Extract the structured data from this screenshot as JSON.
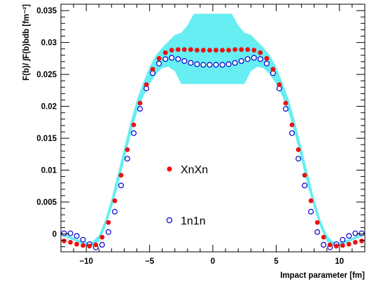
{
  "chart_data": {
    "type": "scatter",
    "title": "",
    "xlabel": "Impact parameter [fm]",
    "ylabel": "F(b)/ ∫F(b)bdb [fm⁻²]",
    "xlim": [
      -12,
      12
    ],
    "ylim": [
      -0.0028,
      0.036
    ],
    "x_ticks": [
      -10,
      -5,
      0,
      5,
      10
    ],
    "x_tick_labels": [
      "−10",
      "−5",
      "0",
      "5",
      "10"
    ],
    "y_ticks": [
      0,
      0.005,
      0.01,
      0.015,
      0.02,
      0.025,
      0.03,
      0.035
    ],
    "y_tick_labels": [
      "0",
      "0.005",
      "0.01",
      "0.015",
      "0.02",
      "0.025",
      "0.03",
      "0.035"
    ],
    "grid": false,
    "legend_position": "center",
    "band_color": "#66eef2",
    "band": {
      "x": [
        -12,
        -11.5,
        -11,
        -10.5,
        -10,
        -9.5,
        -9,
        -8.5,
        -8,
        -7.5,
        -7,
        -6.5,
        -6,
        -5.5,
        -5,
        -4.5,
        -4,
        -3.5,
        -3,
        -2.5,
        -2,
        -1.5,
        -1,
        -0.5,
        0,
        0.5,
        1,
        1.5,
        2,
        2.5,
        3,
        3.5,
        4,
        4.5,
        5,
        5.5,
        6,
        6.5,
        7,
        7.5,
        8,
        8.5,
        9,
        9.5,
        10,
        10.5,
        11,
        11.5,
        12
      ],
      "lower": [
        -0.0002,
        -0.0006,
        -0.001,
        -0.0015,
        -0.0018,
        -0.0019,
        -0.0012,
        0.001,
        0.004,
        0.0075,
        0.0115,
        0.0155,
        0.019,
        0.0215,
        0.0235,
        0.025,
        0.026,
        0.0262,
        0.0255,
        0.0235,
        0.0235,
        0.0235,
        0.0235,
        0.0235,
        0.0235,
        0.0235,
        0.0235,
        0.0235,
        0.0235,
        0.0235,
        0.0255,
        0.0262,
        0.026,
        0.025,
        0.0235,
        0.0215,
        0.019,
        0.0155,
        0.0115,
        0.0075,
        0.004,
        0.001,
        -0.0012,
        -0.0019,
        -0.0018,
        -0.0015,
        -0.001,
        -0.0006,
        -0.0002
      ],
      "upper": [
        0.0002,
        -0.0002,
        -0.0006,
        -0.001,
        -0.0013,
        -0.0012,
        -0.0002,
        0.0022,
        0.0055,
        0.0095,
        0.0135,
        0.0175,
        0.021,
        0.0237,
        0.0262,
        0.028,
        0.0292,
        0.0302,
        0.0312,
        0.0315,
        0.0327,
        0.0345,
        0.0345,
        0.0345,
        0.0345,
        0.0345,
        0.0345,
        0.0345,
        0.0327,
        0.0315,
        0.0312,
        0.0302,
        0.0292,
        0.028,
        0.0262,
        0.0237,
        0.021,
        0.0175,
        0.0135,
        0.0095,
        0.0055,
        0.0022,
        -0.0002,
        -0.0012,
        -0.0013,
        -0.001,
        -0.0006,
        -0.0002,
        0.0002
      ]
    },
    "series": [
      {
        "name": "XnXn",
        "marker": "filled-circle",
        "color": "#ee1111",
        "x": [
          -11.75,
          -11.25,
          -10.75,
          -10.25,
          -9.75,
          -9.25,
          -8.75,
          -8.25,
          -7.75,
          -7.25,
          -6.75,
          -6.25,
          -5.75,
          -5.25,
          -4.75,
          -4.25,
          -3.75,
          -3.25,
          -2.75,
          -2.25,
          -1.75,
          -1.25,
          -0.75,
          -0.25,
          0.25,
          0.75,
          1.25,
          1.75,
          2.25,
          2.75,
          3.25,
          3.75,
          4.25,
          4.75,
          5.25,
          5.75,
          6.25,
          6.75,
          7.25,
          7.75,
          8.25,
          8.75,
          9.25,
          9.75,
          10.25,
          10.75,
          11.25,
          11.75
        ],
        "y": [
          -0.0011,
          -0.0013,
          -0.0016,
          -0.0018,
          -0.0019,
          -0.0017,
          -0.0005,
          0.0018,
          0.0052,
          0.0092,
          0.0132,
          0.0171,
          0.0205,
          0.0234,
          0.0258,
          0.0275,
          0.0284,
          0.0288,
          0.0289,
          0.0289,
          0.0289,
          0.0288,
          0.0288,
          0.0288,
          0.0288,
          0.0288,
          0.0288,
          0.0289,
          0.0289,
          0.0289,
          0.0288,
          0.0284,
          0.0275,
          0.0258,
          0.0234,
          0.0205,
          0.0171,
          0.0132,
          0.0092,
          0.0052,
          0.0018,
          -0.0005,
          -0.0017,
          -0.0019,
          -0.0018,
          -0.0016,
          -0.0013,
          -0.0011
        ]
      },
      {
        "name": "1n1n",
        "marker": "open-circle",
        "color": "#0000cc",
        "x": [
          -11.75,
          -11.25,
          -10.75,
          -10.25,
          -9.75,
          -9.25,
          -8.75,
          -8.25,
          -7.75,
          -7.25,
          -6.75,
          -6.25,
          -5.75,
          -5.25,
          -4.75,
          -4.25,
          -3.75,
          -3.25,
          -2.75,
          -2.25,
          -1.75,
          -1.25,
          -0.75,
          -0.25,
          0.25,
          0.75,
          1.25,
          1.75,
          2.25,
          2.75,
          3.25,
          3.75,
          4.25,
          4.75,
          5.25,
          5.75,
          6.25,
          6.75,
          7.25,
          7.75,
          8.25,
          8.75,
          9.25,
          9.75,
          10.25,
          10.75,
          11.25,
          11.75
        ],
        "y": [
          0.0001,
          0.0001,
          -0.0003,
          -0.0009,
          -0.0016,
          -0.0021,
          -0.0017,
          0.0003,
          0.0035,
          0.0076,
          0.0118,
          0.0158,
          0.0196,
          0.0228,
          0.0252,
          0.0267,
          0.0274,
          0.0276,
          0.0274,
          0.0271,
          0.0268,
          0.0266,
          0.0265,
          0.0265,
          0.0265,
          0.0265,
          0.0266,
          0.0268,
          0.0271,
          0.0274,
          0.0276,
          0.0274,
          0.0267,
          0.0252,
          0.0228,
          0.0196,
          0.0158,
          0.0118,
          0.0076,
          0.0035,
          0.0003,
          -0.0017,
          -0.0021,
          -0.0016,
          -0.0009,
          -0.0003,
          0.0001,
          0.0001
        ]
      }
    ]
  }
}
